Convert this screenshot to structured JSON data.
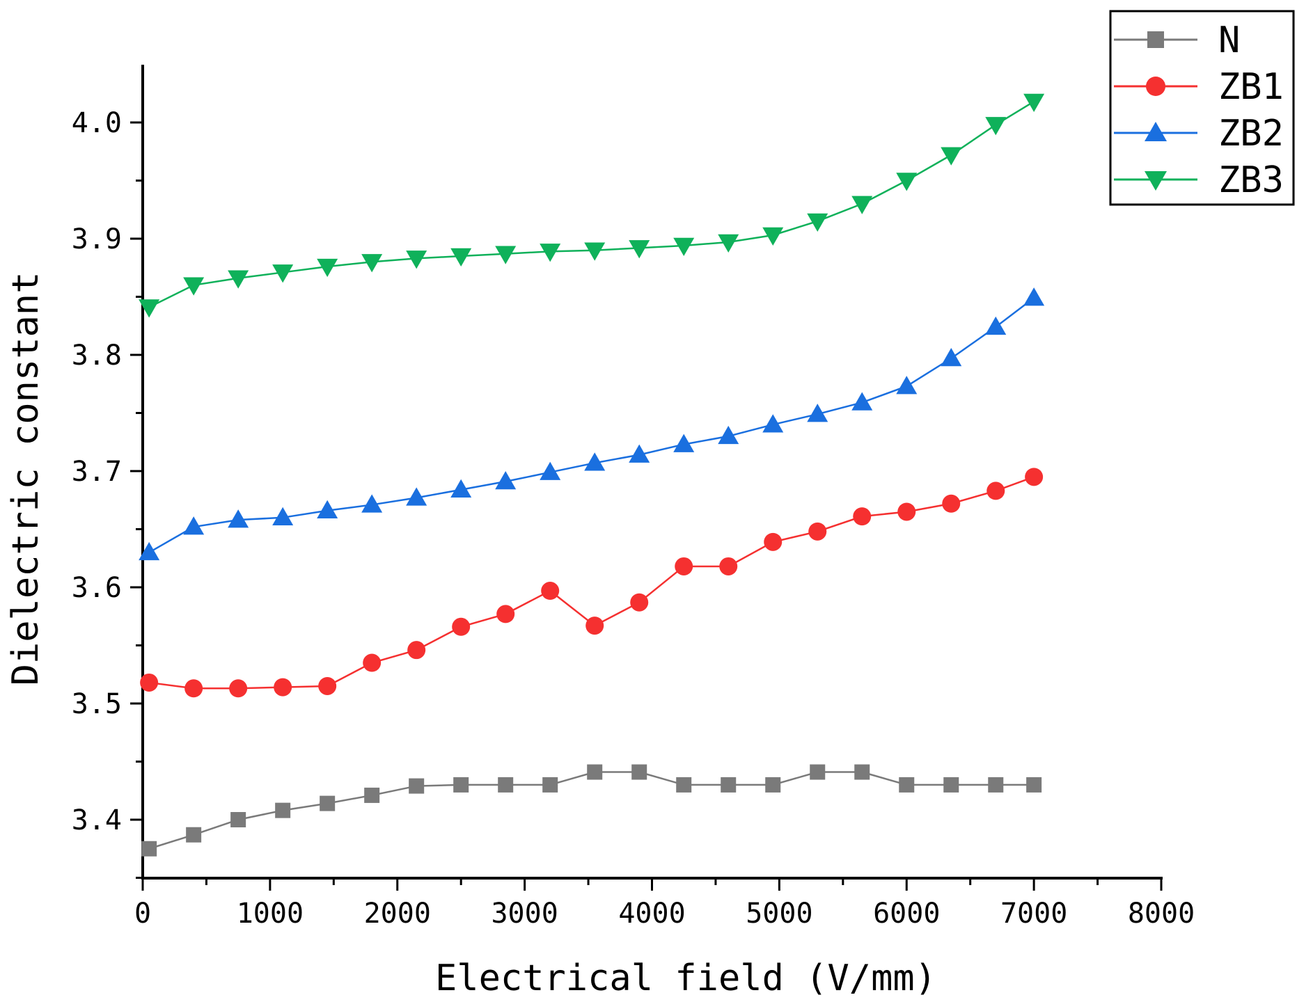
{
  "chart_data": {
    "type": "line",
    "title": "",
    "xlabel": "Electrical field (V/mm)",
    "ylabel": "Dielectric constant",
    "xlim": [
      0,
      8000
    ],
    "ylim": [
      3.35,
      4.05
    ],
    "xticks": [
      0,
      1000,
      2000,
      3000,
      4000,
      5000,
      6000,
      7000,
      8000
    ],
    "yticks": [
      3.4,
      3.5,
      3.6,
      3.7,
      3.8,
      3.9,
      4.0
    ],
    "xtick_labels": [
      "0",
      "1000",
      "2000",
      "3000",
      "4000",
      "5000",
      "6000",
      "7000",
      "8000"
    ],
    "ytick_labels": [
      "3.4",
      "3.5",
      "3.6",
      "3.7",
      "3.8",
      "3.9",
      "4.0"
    ],
    "grid": false,
    "legend_position": "top-right",
    "x": [
      50,
      400,
      750,
      1100,
      1450,
      1800,
      2150,
      2500,
      2850,
      3200,
      3550,
      3900,
      4250,
      4600,
      4950,
      5300,
      5650,
      6000,
      6350,
      6700,
      7000
    ],
    "series": [
      {
        "name": "N",
        "color": "#7a7a7a",
        "marker": "square",
        "values": [
          3.375,
          3.387,
          3.4,
          3.408,
          3.414,
          3.421,
          3.429,
          3.43,
          3.43,
          3.43,
          3.441,
          3.441,
          3.43,
          3.43,
          3.43,
          3.441,
          3.441,
          3.43,
          3.43,
          3.43,
          3.43
        ]
      },
      {
        "name": "ZB1",
        "color": "#f53030",
        "marker": "circle",
        "values": [
          3.518,
          3.513,
          3.513,
          3.514,
          3.515,
          3.535,
          3.546,
          3.566,
          3.577,
          3.597,
          3.567,
          3.587,
          3.618,
          3.618,
          3.639,
          3.648,
          3.661,
          3.665,
          3.672,
          3.683,
          3.695
        ]
      },
      {
        "name": "ZB2",
        "color": "#1a6fdf",
        "marker": "triangle-up",
        "values": [
          3.63,
          3.652,
          3.658,
          3.66,
          3.666,
          3.671,
          3.677,
          3.684,
          3.691,
          3.699,
          3.707,
          3.714,
          3.723,
          3.73,
          3.74,
          3.749,
          3.759,
          3.773,
          3.797,
          3.824,
          3.849
        ]
      },
      {
        "name": "ZB3",
        "color": "#0fb15a",
        "marker": "triangle-down",
        "values": [
          3.841,
          3.86,
          3.866,
          3.871,
          3.876,
          3.88,
          3.883,
          3.885,
          3.887,
          3.889,
          3.89,
          3.892,
          3.894,
          3.897,
          3.903,
          3.915,
          3.93,
          3.95,
          3.972,
          3.998,
          4.018
        ]
      }
    ]
  }
}
